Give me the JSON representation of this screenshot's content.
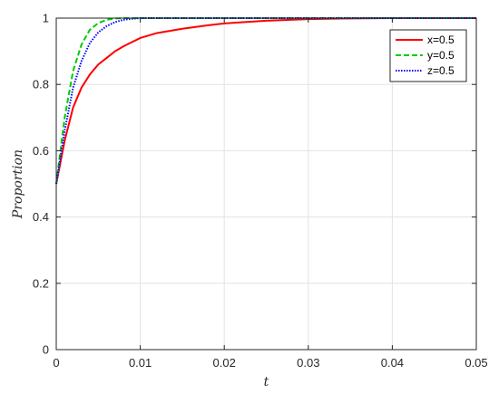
{
  "chart_data": {
    "type": "line",
    "title": "",
    "xlabel": "t",
    "ylabel": "Proportion",
    "xlim": [
      0,
      0.05
    ],
    "ylim": [
      0,
      1
    ],
    "xticks": [
      "0",
      "0.01",
      "0.02",
      "0.03",
      "0.04",
      "0.05"
    ],
    "yticks": [
      "0",
      "0.2",
      "0.4",
      "0.6",
      "0.8",
      "1"
    ],
    "grid": true,
    "legend_position": "top-right",
    "series": [
      {
        "name": "x=0.5",
        "color": "#ff0000",
        "style": "solid",
        "x": [
          0,
          0.001,
          0.002,
          0.003,
          0.004,
          0.005,
          0.006,
          0.007,
          0.008,
          0.01,
          0.012,
          0.015,
          0.018,
          0.02,
          0.025,
          0.03,
          0.035,
          0.04,
          0.05
        ],
        "values": [
          0.5,
          0.63,
          0.73,
          0.79,
          0.83,
          0.86,
          0.88,
          0.9,
          0.915,
          0.94,
          0.955,
          0.968,
          0.978,
          0.984,
          0.992,
          0.997,
          0.999,
          1.0,
          1.0
        ]
      },
      {
        "name": "y=0.5",
        "color": "#00cc00",
        "style": "dashed",
        "x": [
          0,
          0.001,
          0.002,
          0.003,
          0.004,
          0.005,
          0.006,
          0.007,
          0.008,
          0.01,
          0.02,
          0.03,
          0.04,
          0.05
        ],
        "values": [
          0.5,
          0.7,
          0.84,
          0.92,
          0.965,
          0.985,
          0.995,
          0.999,
          1.0,
          1.0,
          1.0,
          1.0,
          1.0,
          1.0
        ]
      },
      {
        "name": "z=0.5",
        "color": "#0000ff",
        "style": "dotted",
        "x": [
          0,
          0.001,
          0.002,
          0.003,
          0.004,
          0.005,
          0.006,
          0.007,
          0.008,
          0.009,
          0.01,
          0.02,
          0.03,
          0.04,
          0.05
        ],
        "values": [
          0.5,
          0.66,
          0.79,
          0.87,
          0.925,
          0.957,
          0.976,
          0.988,
          0.995,
          0.998,
          1.0,
          1.0,
          1.0,
          1.0,
          1.0
        ]
      }
    ]
  }
}
